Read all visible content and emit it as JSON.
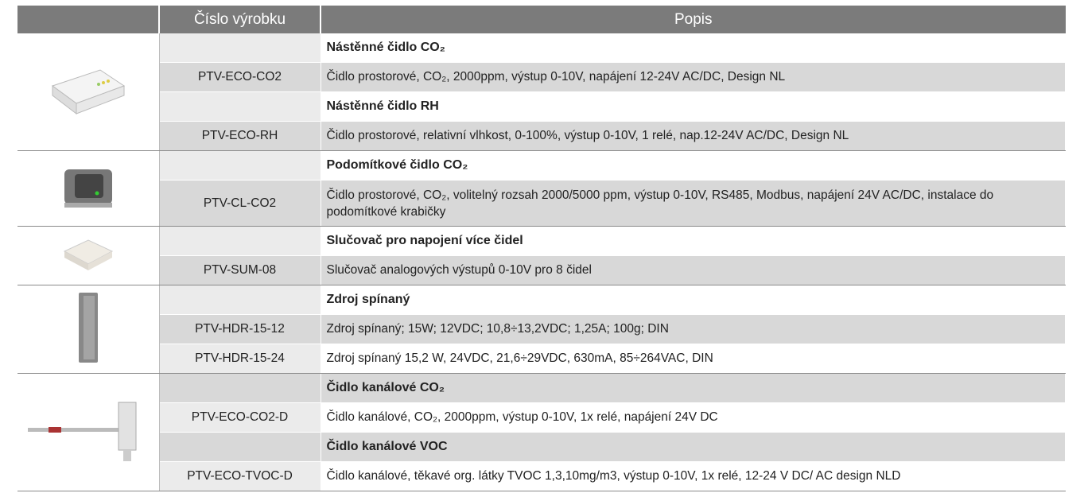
{
  "header": {
    "image": "",
    "code": "Číslo výrobku",
    "description": "Popis"
  },
  "groups": [
    {
      "sections": [
        {
          "title": "Nástěnné čidlo CO₂",
          "products": [
            {
              "code": "PTV-ECO-CO2",
              "description": "Čidlo prostorové, CO₂, 2000ppm, výstup 0-10V, napájení 12-24V AC/DC, Design NL"
            }
          ]
        },
        {
          "title": "Nástěnné čidlo RH",
          "products": [
            {
              "code": "PTV-ECO-RH",
              "description": "Čidlo prostorové, relativní vlhkost, 0-100%, výstup 0-10V,  1 relé, nap.12-24V AC/DC, Design NL"
            }
          ]
        }
      ]
    },
    {
      "sections": [
        {
          "title": "Podomítkové čidlo CO₂",
          "products": [
            {
              "code": "PTV-CL-CO2",
              "description": "Čidlo prostorové, CO₂,  volitelný rozsah 2000/5000 ppm, výstup 0-10V, RS485, Modbus, napájení 24V AC/DC, instalace do podomítkové krabičky"
            }
          ]
        }
      ]
    },
    {
      "sections": [
        {
          "title": "Slučovač pro napojení více čidel",
          "products": [
            {
              "code": "PTV-SUM-08",
              "description": "Slučovač analogových výstupů 0-10V pro 8 čidel"
            }
          ]
        }
      ]
    },
    {
      "sections": [
        {
          "title": "Zdroj spínaný",
          "products": [
            {
              "code": "PTV-HDR-15-12",
              "description": "Zdroj spínaný; 15W; 12VDC; 10,8÷13,2VDC; 1,25A; 100g; DIN"
            },
            {
              "code": "PTV-HDR-15-24",
              "description": "Zdroj spínaný 15,2 W, 24VDC, 21,6÷29VDC, 630mA, 85÷264VAC, DIN"
            }
          ]
        }
      ]
    },
    {
      "sections": [
        {
          "title": "Čidlo kanálové CO₂",
          "products": [
            {
              "code": "PTV-ECO-CO2-D",
              "description": "Čidlo kanálové, CO₂, 2000ppm, výstup 0-10V, 1x relé, napájení 24V DC"
            }
          ]
        },
        {
          "title": "Čidlo kanálové VOC",
          "products": [
            {
              "code": "PTV-ECO-TVOC-D",
              "description": "Čidlo kanálové, těkavé org. látky TVOC 1,3,10mg/m3, výstup 0-10V, 1x relé, 12-24 V DC/ AC design NLD"
            }
          ]
        }
      ]
    }
  ]
}
